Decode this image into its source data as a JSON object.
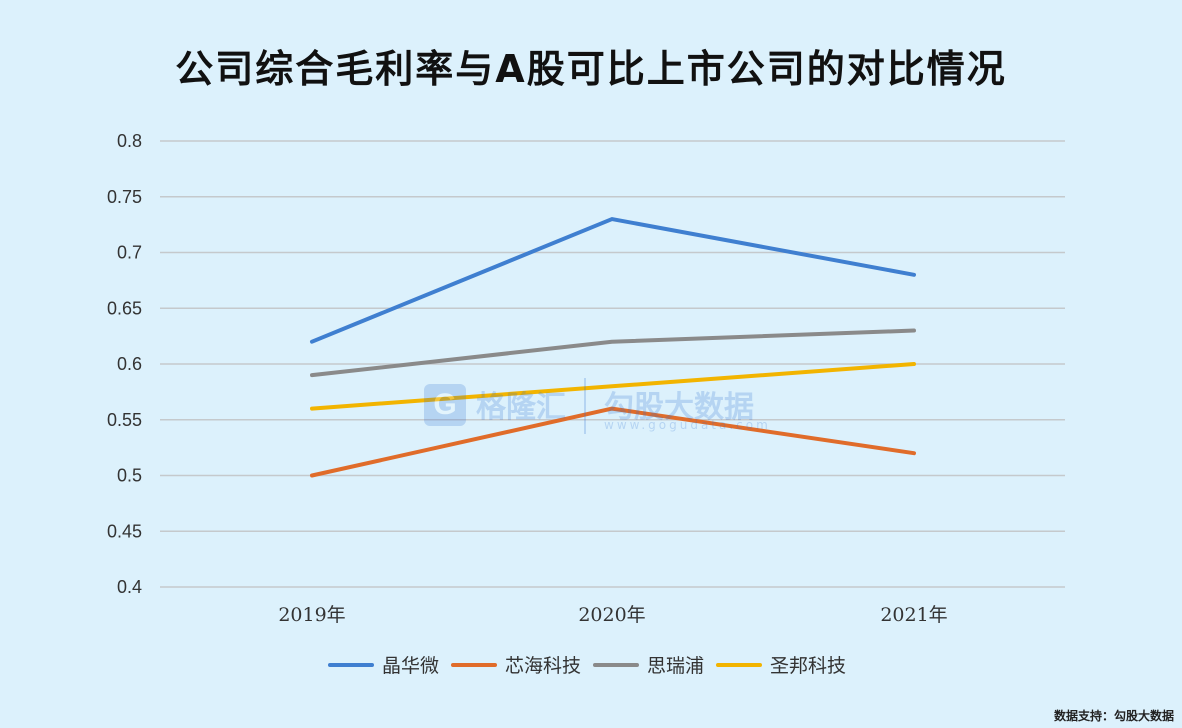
{
  "chart_data": {
    "type": "line",
    "title": "公司综合毛利率与A股可比上市公司的对比情况",
    "categories": [
      "2019年",
      "2020年",
      "2021年"
    ],
    "ylim": [
      0.4,
      0.8
    ],
    "yticks": [
      "0.8",
      "0.75",
      "0.7",
      "0.65",
      "0.6",
      "0.55",
      "0.5",
      "0.45",
      "0.4"
    ],
    "ytick_values": [
      0.8,
      0.75,
      0.7,
      0.65,
      0.6,
      0.55,
      0.5,
      0.45,
      0.4
    ],
    "grid": true,
    "legend_position": "bottom",
    "series": [
      {
        "name": "晶华微",
        "values": [
          0.62,
          0.73,
          0.68
        ],
        "color": "#3f7fd0"
      },
      {
        "name": "芯海科技",
        "values": [
          0.5,
          0.56,
          0.52
        ],
        "color": "#e06c2a"
      },
      {
        "name": "思瑞浦",
        "values": [
          0.59,
          0.62,
          0.63
        ],
        "color": "#8a8a8a"
      },
      {
        "name": "圣邦科技",
        "values": [
          0.56,
          0.58,
          0.6
        ],
        "color": "#f2b400"
      }
    ]
  },
  "watermark": {
    "logo": "G",
    "name": "格隆汇",
    "name2": "勾股大数据",
    "url": "www.gogudata.com"
  },
  "source": "数据支持：勾股大数据"
}
